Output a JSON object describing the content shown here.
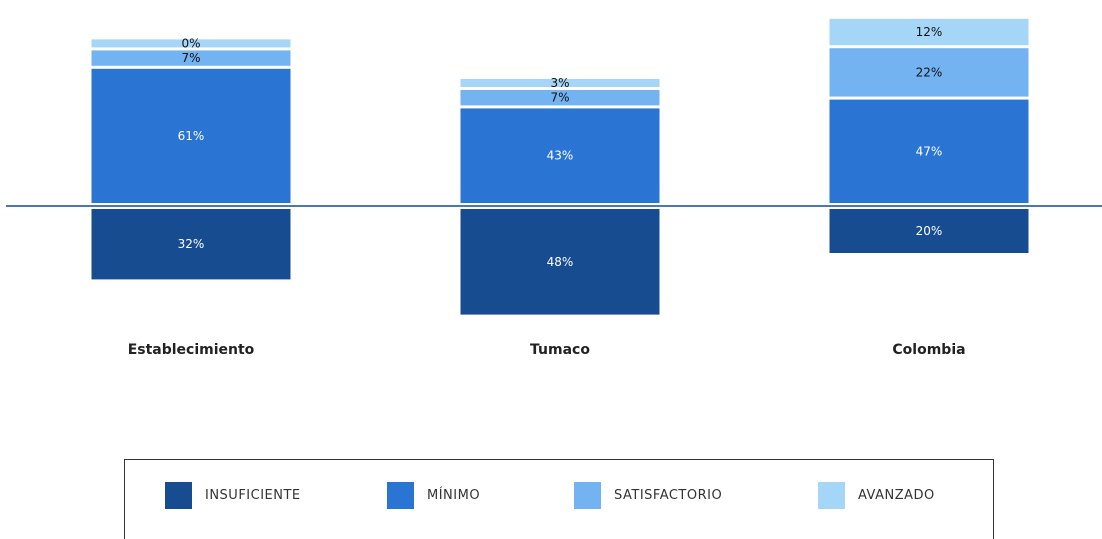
{
  "chart_data": {
    "type": "bar",
    "stacked": "diverging",
    "categories": [
      "Establecimiento",
      "Tumaco",
      "Colombia"
    ],
    "series": [
      {
        "name": "INSUFICIENTE",
        "color": "#174c91",
        "direction": "down",
        "values": [
          32,
          48,
          20
        ],
        "labels": [
          "32%",
          "48%",
          "20%"
        ]
      },
      {
        "name": "MÍNIMO",
        "color": "#2a74d3",
        "direction": "up",
        "values": [
          61,
          43,
          47
        ],
        "labels": [
          "61%",
          "43%",
          "47%"
        ]
      },
      {
        "name": "SATISFACTORIO",
        "color": "#74b3f1",
        "direction": "up",
        "values": [
          7,
          7,
          22
        ],
        "labels": [
          "7%",
          "7%",
          "22%"
        ]
      },
      {
        "name": "AVANZADO",
        "color": "#a6d6f7",
        "direction": "up",
        "values": [
          0,
          3,
          12
        ],
        "labels": [
          "0%",
          "3%",
          "12%"
        ]
      }
    ],
    "label_colors": {
      "INSUFICIENTE": "#ffffff",
      "MÍNIMO": "#ffffff",
      "SATISFACTORIO": "#111111",
      "AVANZADO": "#111111"
    },
    "axis_color": "#4a78b5",
    "legend_position": "bottom"
  }
}
